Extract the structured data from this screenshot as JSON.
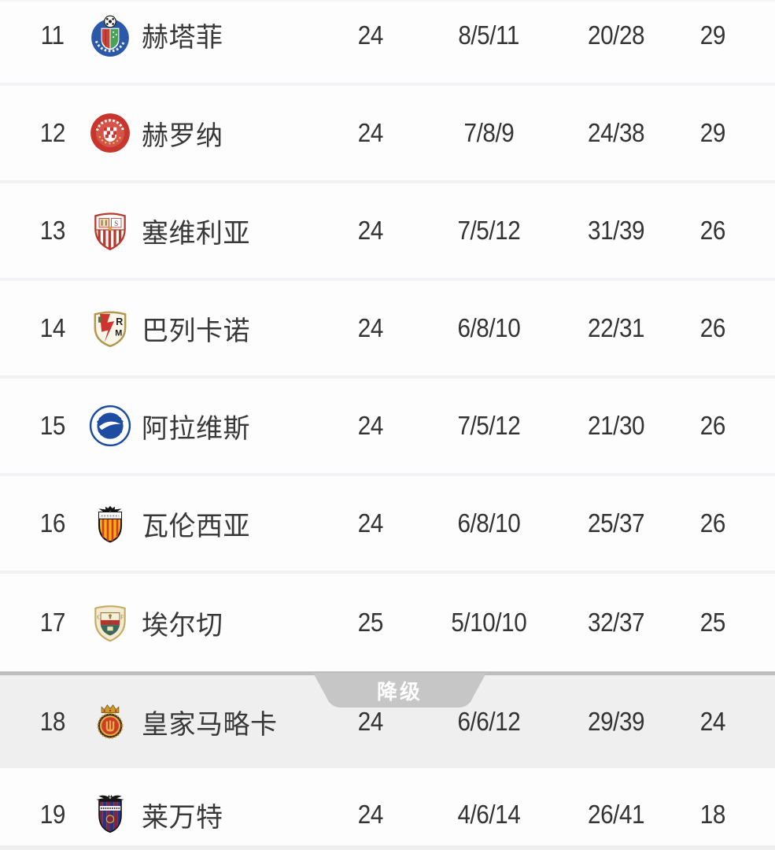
{
  "colors": {
    "row_bg": "#fdfdfd",
    "separator": "#f2f2f4",
    "divider_line": "#bdbdbd",
    "tab_bg": "#c6c6c6",
    "tab_text": "#ffffff",
    "relegation_row_bg": "#efefef",
    "text_primary": "#333333"
  },
  "table": {
    "relegation_label": "降级",
    "rows": [
      {
        "rank": "11",
        "team": "赫塔菲",
        "crest": "getafe-crest",
        "crest_colors": {
          "primary": "#2b59a7",
          "secondary": "#c8433b",
          "tertiary": "#46a254"
        },
        "played": "24",
        "wdl": "8/5/11",
        "goals": "20/28",
        "points": "29",
        "zone": "normal"
      },
      {
        "rank": "12",
        "team": "赫罗纳",
        "crest": "girona-crest",
        "crest_colors": {
          "primary": "#c8352c",
          "secondary": "#d4544a",
          "tertiary": "#e9c75f"
        },
        "played": "24",
        "wdl": "7/8/9",
        "goals": "24/38",
        "points": "29",
        "zone": "normal"
      },
      {
        "rank": "13",
        "team": "塞维利亚",
        "crest": "sevilla-crest",
        "crest_colors": {
          "primary": "#fefdfb",
          "secondary": "#b8392e",
          "tertiary": "#d9a43c"
        },
        "played": "24",
        "wdl": "7/5/12",
        "goals": "31/39",
        "points": "26",
        "zone": "normal"
      },
      {
        "rank": "14",
        "team": "巴列卡诺",
        "crest": "rayo-vallecano-crest",
        "crest_colors": {
          "primary": "#faf6ea",
          "secondary": "#cf352e",
          "tertiary": "#b09a50"
        },
        "played": "24",
        "wdl": "6/8/10",
        "goals": "22/31",
        "points": "26",
        "zone": "normal"
      },
      {
        "rank": "15",
        "team": "阿拉维斯",
        "crest": "alaves-crest",
        "crest_colors": {
          "primary": "#1e4ca1",
          "secondary": "#ffffff",
          "tertiary": "#1e4ca1"
        },
        "played": "24",
        "wdl": "7/5/12",
        "goals": "21/30",
        "points": "26",
        "zone": "normal"
      },
      {
        "rank": "16",
        "team": "瓦伦西亚",
        "crest": "valencia-crest",
        "crest_colors": {
          "primary": "#f6b40e",
          "secondary": "#d8382e",
          "tertiary": "#141414"
        },
        "played": "24",
        "wdl": "6/8/10",
        "goals": "25/37",
        "points": "26",
        "zone": "normal"
      },
      {
        "rank": "17",
        "team": "埃尔切",
        "crest": "elche-crest",
        "crest_colors": {
          "primary": "#f2ebd3",
          "secondary": "#b2362f",
          "tertiary": "#37695c"
        },
        "played": "25",
        "wdl": "5/10/10",
        "goals": "32/37",
        "points": "25",
        "zone": "normal"
      },
      {
        "rank": "18",
        "team": "皇家马略卡",
        "crest": "mallorca-crest",
        "crest_colors": {
          "primary": "#cf3b24",
          "secondary": "#d29a2a",
          "tertiary": "#46301a"
        },
        "played": "24",
        "wdl": "6/6/12",
        "goals": "29/39",
        "points": "24",
        "zone": "relegation"
      },
      {
        "rank": "19",
        "team": "莱万特",
        "crest": "levante-crest",
        "crest_colors": {
          "primary": "#7c2644",
          "secondary": "#27337c",
          "tertiary": "#161616"
        },
        "played": "24",
        "wdl": "4/6/14",
        "goals": "26/41",
        "points": "18",
        "zone": "relegation"
      }
    ]
  }
}
